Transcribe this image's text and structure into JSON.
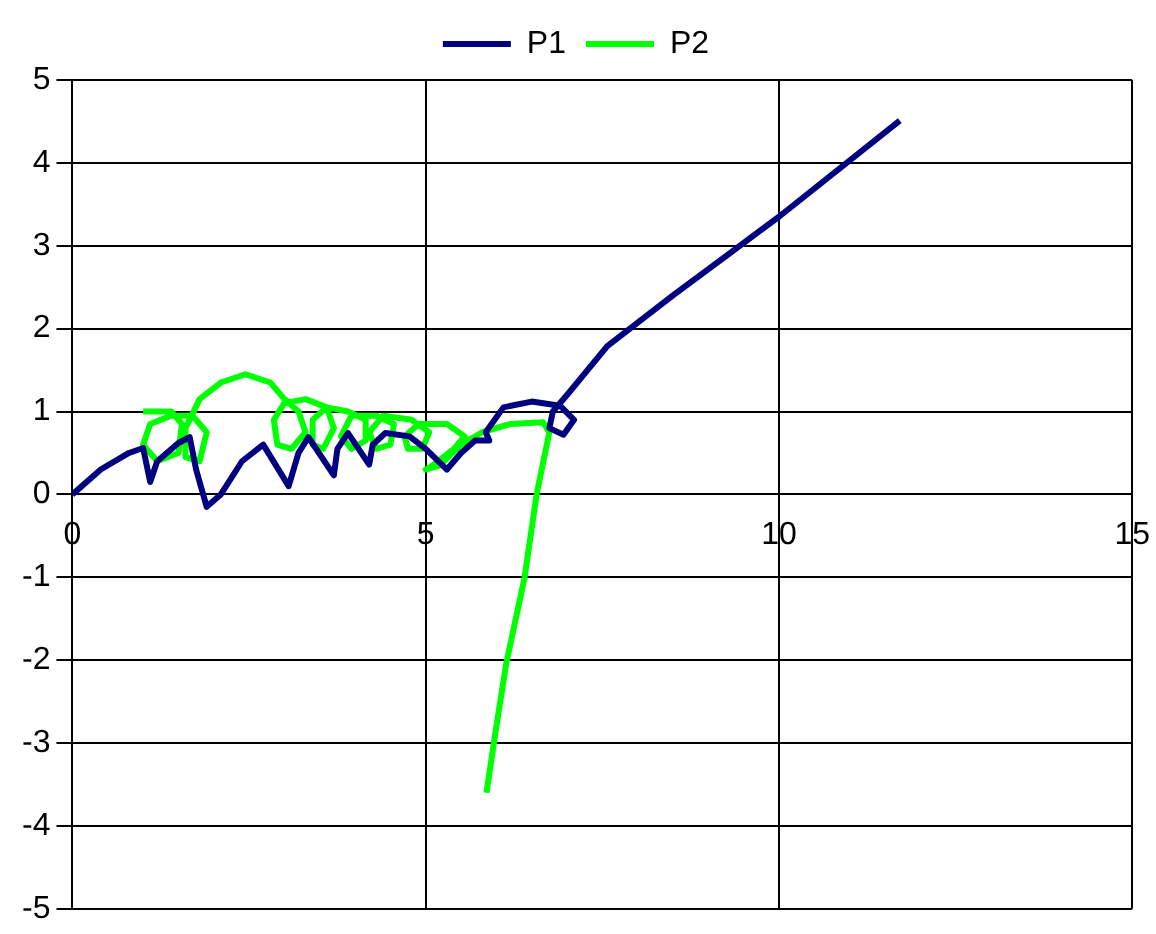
{
  "chart_data": {
    "type": "line",
    "legend": "top",
    "grid": true,
    "marker": "none",
    "line_style": "solid",
    "xlim": [
      0,
      15
    ],
    "xticks": [
      0,
      5,
      10,
      15
    ],
    "ylim": [
      -5,
      5
    ],
    "yticks": [
      -5,
      -4,
      -3,
      -2,
      -1,
      0,
      1,
      2,
      3,
      4,
      5
    ],
    "series": [
      {
        "name": "P1",
        "color": "#000080",
        "x": [
          0,
          0.4,
          0.8,
          1.0,
          1.1,
          1.2,
          1.5,
          1.66,
          1.75,
          1.9,
          2.1,
          2.4,
          2.7,
          3.06,
          3.2,
          3.34,
          3.7,
          3.75,
          3.9,
          4.2,
          4.25,
          4.43,
          4.77,
          5.0,
          5.3,
          5.5,
          5.7,
          5.9,
          5.85,
          6.1,
          6.5,
          6.9,
          7.1,
          6.95,
          6.75,
          6.8,
          7.0,
          7.57,
          8.5,
          10,
          11.71
        ],
        "values": [
          0,
          0.3,
          0.5,
          0.56,
          0.15,
          0.4,
          0.62,
          0.69,
          0.3,
          -0.15,
          0,
          0.4,
          0.6,
          0.1,
          0.5,
          0.69,
          0.23,
          0.55,
          0.74,
          0.36,
          0.6,
          0.74,
          0.7,
          0.55,
          0.3,
          0.5,
          0.65,
          0.65,
          0.75,
          1.05,
          1.12,
          1.07,
          0.9,
          0.72,
          0.8,
          1.0,
          1.2,
          1.79,
          2.4,
          3.35,
          4.51
        ]
      },
      {
        "name": "P2",
        "color": "#00ff00",
        "x": [
          1.0,
          1.4,
          1.55,
          1.5,
          1.2,
          1.0,
          1.1,
          1.4,
          1.7,
          1.9,
          1.8,
          1.6,
          1.6,
          1.8,
          2.1,
          2.45,
          2.8,
          3.0,
          3.2,
          3.3,
          3.1,
          2.9,
          2.85,
          3.0,
          3.3,
          3.6,
          3.7,
          3.55,
          3.4,
          3.4,
          3.6,
          3.9,
          4.15,
          4.15,
          3.95,
          3.8,
          3.95,
          4.3,
          4.55,
          4.5,
          4.3,
          4.2,
          4.4,
          4.8,
          5.05,
          4.95,
          4.75,
          4.7,
          4.9,
          5.3,
          5.55,
          5.4,
          5.1,
          5.0,
          5.2,
          5.5,
          5.8,
          6.2,
          6.66,
          6.75,
          6.57,
          6.4,
          6.14,
          6.0,
          5.86
        ],
        "values": [
          1.0,
          1.0,
          0.85,
          0.5,
          0.4,
          0.6,
          0.85,
          0.95,
          0.95,
          0.75,
          0.4,
          0.45,
          0.8,
          1.15,
          1.35,
          1.45,
          1.35,
          1.15,
          1.0,
          0.75,
          0.55,
          0.6,
          0.9,
          1.1,
          1.15,
          1.05,
          0.8,
          0.55,
          0.6,
          0.9,
          1.05,
          1.0,
          0.9,
          0.65,
          0.55,
          0.7,
          0.95,
          0.95,
          0.85,
          0.6,
          0.55,
          0.75,
          0.95,
          0.9,
          0.75,
          0.55,
          0.55,
          0.7,
          0.85,
          0.85,
          0.7,
          0.55,
          0.35,
          0.3,
          0.35,
          0.6,
          0.75,
          0.85,
          0.87,
          0.75,
          0,
          -1.0,
          -2.04,
          -2.8,
          -3.6
        ]
      }
    ]
  }
}
